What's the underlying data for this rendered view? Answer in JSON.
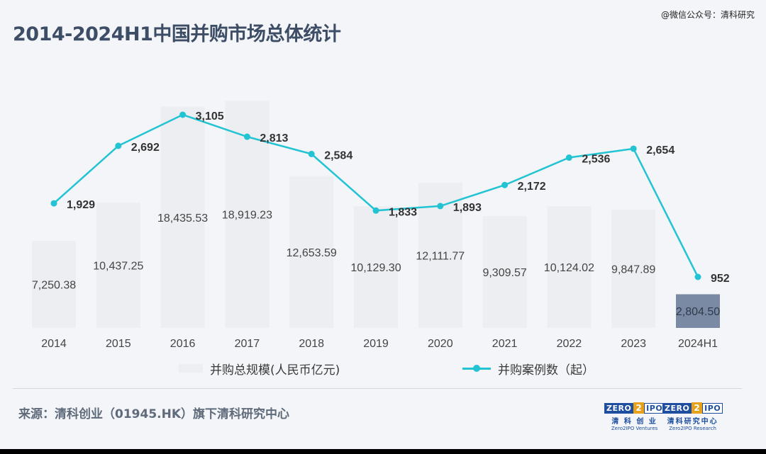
{
  "title": "2014-2024H1中国并购市场总体统计",
  "watermark": "@微信公众号：清科研究",
  "legend": {
    "bar_label": "并购总规模(人民币亿元)",
    "line_label": "并购案例数（起）"
  },
  "source": "来源：清科创业（01945.HK）旗下清科研究中心",
  "logos": [
    {
      "zero": "ZERO",
      "two": "2",
      "ipo": "IPO",
      "cn": "清 科 创 业",
      "en": "Zero2IPO Ventures"
    },
    {
      "zero": "ZERO",
      "two": "2",
      "ipo": "IPO",
      "cn": "清科研究中心",
      "en": "Zero2IPO Research"
    }
  ],
  "colors": {
    "bar": "#eceef1",
    "bar_highlight": "#7a8aa4",
    "line": "#22c3d3",
    "title": "#3d4d66"
  },
  "chart_data": {
    "type": "bar",
    "categories": [
      "2014",
      "2015",
      "2016",
      "2017",
      "2018",
      "2019",
      "2020",
      "2021",
      "2022",
      "2023",
      "2024H1"
    ],
    "series": [
      {
        "name": "并购总规模(人民币亿元)",
        "type": "bar",
        "values": [
          7250.38,
          10437.25,
          18435.53,
          18919.23,
          12653.59,
          10129.3,
          12111.77,
          9309.57,
          10124.02,
          9847.89,
          2804.5
        ],
        "labels": [
          "7,250.38",
          "10,437.25",
          "18,435.53",
          "18,919.23",
          "12,653.59",
          "10,129.30",
          "12,111.77",
          "9,309.57",
          "10,124.02",
          "9,847.89",
          "2,804.50"
        ],
        "highlight_index": 10
      },
      {
        "name": "并购案例数（起）",
        "type": "line",
        "values": [
          1929,
          2692,
          3105,
          2813,
          2584,
          1833,
          1893,
          2172,
          2536,
          2654,
          952
        ],
        "labels": [
          "1,929",
          "2,692",
          "3,105",
          "2,813",
          "2,584",
          "1,833",
          "1,893",
          "2,172",
          "2,536",
          "2,654",
          "952"
        ]
      }
    ],
    "grid": false,
    "legend_position": "bottom"
  }
}
